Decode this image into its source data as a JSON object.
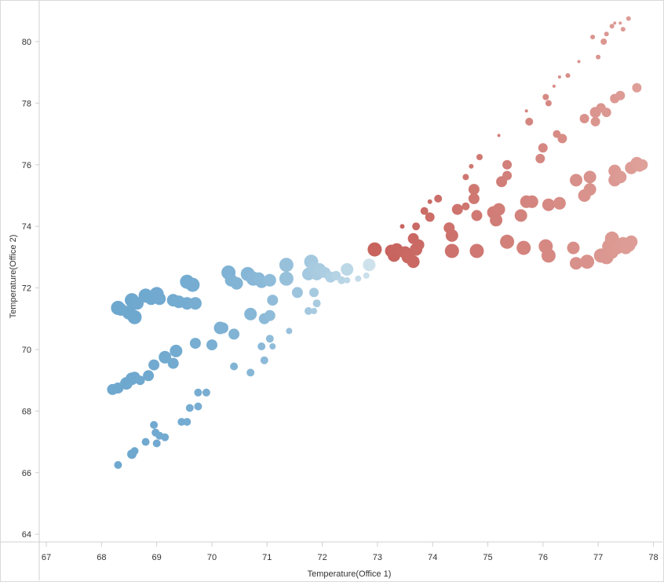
{
  "chart_data": {
    "type": "scatter",
    "xlabel": "Temperature(Office 1)",
    "ylabel": "Temperature(Office 2)",
    "xlim": [
      66.9,
      78.15
    ],
    "ylim": [
      63.8,
      81.3
    ],
    "xticks": [
      67,
      68,
      69,
      70,
      71,
      72,
      73,
      74,
      75,
      76,
      77,
      78
    ],
    "yticks": [
      64,
      66,
      68,
      70,
      72,
      74,
      76,
      78,
      80
    ],
    "grid": false,
    "legend": "none",
    "color_scale": {
      "low": "#6fa8cf",
      "mid": "#cfe3ec",
      "high": "#c8635e",
      "high_light": "#dea099",
      "low_value": 68.2,
      "mid_value": 72.9,
      "high_value": 73.2,
      "max_value": 77.8
    },
    "size_range_note": "marker size varies",
    "points": [
      [
        68.3,
        71.35,
        9
      ],
      [
        68.35,
        71.3,
        8
      ],
      [
        68.5,
        71.2,
        9
      ],
      [
        68.6,
        71.05,
        9
      ],
      [
        68.55,
        71.6,
        9
      ],
      [
        68.65,
        71.5,
        8
      ],
      [
        68.8,
        71.75,
        9
      ],
      [
        68.9,
        71.65,
        8
      ],
      [
        69.0,
        71.8,
        9
      ],
      [
        69.05,
        71.65,
        8
      ],
      [
        69.3,
        71.6,
        8
      ],
      [
        69.4,
        71.55,
        8
      ],
      [
        69.55,
        71.5,
        8
      ],
      [
        69.55,
        72.2,
        9
      ],
      [
        69.65,
        72.1,
        9
      ],
      [
        69.7,
        71.5,
        8
      ],
      [
        68.2,
        68.7,
        7
      ],
      [
        68.3,
        68.75,
        7
      ],
      [
        68.45,
        68.9,
        8
      ],
      [
        68.55,
        69.05,
        8
      ],
      [
        68.6,
        69.1,
        7
      ],
      [
        68.7,
        69.0,
        6
      ],
      [
        68.85,
        69.15,
        7
      ],
      [
        68.95,
        69.5,
        7
      ],
      [
        69.15,
        69.75,
        8
      ],
      [
        69.3,
        69.55,
        7
      ],
      [
        69.35,
        69.95,
        8
      ],
      [
        69.7,
        70.2,
        7
      ],
      [
        70.0,
        70.15,
        7
      ],
      [
        68.3,
        66.25,
        5
      ],
      [
        68.55,
        66.6,
        6
      ],
      [
        68.6,
        66.7,
        5
      ],
      [
        68.8,
        67.0,
        5
      ],
      [
        68.95,
        67.55,
        5
      ],
      [
        68.98,
        67.3,
        5
      ],
      [
        69.05,
        67.2,
        5
      ],
      [
        69.15,
        67.15,
        5
      ],
      [
        69.0,
        66.95,
        5
      ],
      [
        69.45,
        67.65,
        5
      ],
      [
        69.55,
        67.65,
        5
      ],
      [
        69.6,
        68.1,
        5
      ],
      [
        69.75,
        68.15,
        5
      ],
      [
        69.75,
        68.6,
        5
      ],
      [
        69.9,
        68.6,
        5
      ],
      [
        70.15,
        70.7,
        8
      ],
      [
        70.2,
        70.7,
        7
      ],
      [
        70.3,
        72.5,
        9
      ],
      [
        70.35,
        72.25,
        8
      ],
      [
        70.45,
        72.15,
        8
      ],
      [
        70.65,
        72.45,
        9
      ],
      [
        70.75,
        72.3,
        9
      ],
      [
        70.85,
        72.3,
        8
      ],
      [
        70.9,
        72.2,
        8
      ],
      [
        71.05,
        72.25,
        8
      ],
      [
        70.4,
        70.5,
        7
      ],
      [
        70.4,
        69.45,
        5
      ],
      [
        70.7,
        71.15,
        8
      ],
      [
        70.7,
        69.25,
        5
      ],
      [
        70.95,
        71.0,
        7
      ],
      [
        71.05,
        71.1,
        7
      ],
      [
        71.1,
        71.6,
        7
      ],
      [
        70.9,
        70.1,
        5
      ],
      [
        71.05,
        70.35,
        5
      ],
      [
        70.95,
        69.65,
        5
      ],
      [
        71.1,
        70.1,
        4
      ],
      [
        71.35,
        72.75,
        9
      ],
      [
        71.35,
        72.3,
        9
      ],
      [
        71.55,
        71.85,
        7
      ],
      [
        71.4,
        70.6,
        4
      ],
      [
        71.75,
        72.45,
        8
      ],
      [
        71.8,
        72.85,
        9
      ],
      [
        71.85,
        72.65,
        8
      ],
      [
        71.9,
        72.45,
        8
      ],
      [
        71.95,
        72.6,
        8
      ],
      [
        71.85,
        71.85,
        6
      ],
      [
        71.9,
        71.5,
        5
      ],
      [
        71.75,
        71.25,
        5
      ],
      [
        71.85,
        71.25,
        4
      ],
      [
        72.05,
        72.5,
        7
      ],
      [
        72.15,
        72.35,
        7
      ],
      [
        72.25,
        72.4,
        6
      ],
      [
        72.35,
        72.25,
        5
      ],
      [
        72.45,
        72.25,
        4
      ],
      [
        72.45,
        72.6,
        8
      ],
      [
        72.65,
        72.3,
        4
      ],
      [
        72.85,
        72.75,
        8
      ],
      [
        72.95,
        73.25,
        9
      ],
      [
        72.8,
        72.4,
        4
      ],
      [
        73.25,
        73.2,
        8
      ],
      [
        73.3,
        73.05,
        8
      ],
      [
        73.35,
        73.25,
        8
      ],
      [
        73.5,
        73.15,
        8
      ],
      [
        73.55,
        73.0,
        8
      ],
      [
        73.65,
        72.85,
        8
      ],
      [
        73.7,
        73.25,
        8
      ],
      [
        73.65,
        73.6,
        7
      ],
      [
        73.75,
        73.4,
        7
      ],
      [
        73.45,
        74.0,
        3
      ],
      [
        73.7,
        74.0,
        5
      ],
      [
        73.85,
        74.5,
        5
      ],
      [
        73.95,
        74.3,
        6
      ],
      [
        74.1,
        74.9,
        5
      ],
      [
        73.95,
        74.8,
        3
      ],
      [
        74.3,
        73.95,
        7
      ],
      [
        74.35,
        73.7,
        8
      ],
      [
        74.35,
        73.2,
        9
      ],
      [
        74.45,
        74.55,
        7
      ],
      [
        74.6,
        74.65,
        5
      ],
      [
        74.6,
        75.6,
        4
      ],
      [
        74.7,
        75.95,
        3
      ],
      [
        74.75,
        75.2,
        7
      ],
      [
        74.75,
        74.9,
        7
      ],
      [
        74.8,
        74.35,
        7
      ],
      [
        74.85,
        76.25,
        4
      ],
      [
        74.8,
        73.2,
        9
      ],
      [
        75.1,
        74.45,
        8
      ],
      [
        75.15,
        74.2,
        8
      ],
      [
        75.2,
        74.55,
        8
      ],
      [
        75.25,
        75.45,
        7
      ],
      [
        75.35,
        75.65,
        6
      ],
      [
        75.35,
        76.0,
        6
      ],
      [
        75.2,
        76.95,
        2
      ],
      [
        75.35,
        73.5,
        9
      ],
      [
        75.65,
        73.3,
        9
      ],
      [
        75.6,
        74.35,
        8
      ],
      [
        75.7,
        74.8,
        8
      ],
      [
        75.8,
        74.8,
        8
      ],
      [
        75.75,
        77.4,
        5
      ],
      [
        75.7,
        77.75,
        2
      ],
      [
        75.95,
        76.2,
        6
      ],
      [
        76.0,
        76.55,
        6
      ],
      [
        76.05,
        78.2,
        4
      ],
      [
        76.1,
        78.0,
        4
      ],
      [
        76.05,
        73.35,
        9
      ],
      [
        76.1,
        73.05,
        9
      ],
      [
        76.1,
        74.7,
        8
      ],
      [
        76.3,
        74.75,
        8
      ],
      [
        76.25,
        77.0,
        5
      ],
      [
        76.2,
        78.55,
        2
      ],
      [
        76.3,
        78.85,
        2
      ],
      [
        76.35,
        76.85,
        6
      ],
      [
        76.45,
        78.9,
        3
      ],
      [
        76.55,
        73.3,
        8
      ],
      [
        76.6,
        72.8,
        8
      ],
      [
        76.6,
        75.5,
        8
      ],
      [
        76.65,
        79.35,
        2
      ],
      [
        76.75,
        77.5,
        6
      ],
      [
        76.75,
        75.0,
        8
      ],
      [
        76.8,
        72.85,
        9
      ],
      [
        76.85,
        75.6,
        8
      ],
      [
        76.85,
        75.2,
        8
      ],
      [
        76.9,
        80.15,
        3
      ],
      [
        76.95,
        77.7,
        7
      ],
      [
        76.95,
        77.4,
        6
      ],
      [
        77.0,
        79.5,
        3
      ],
      [
        77.05,
        77.85,
        6
      ],
      [
        77.15,
        77.7,
        6
      ],
      [
        77.1,
        80.0,
        4
      ],
      [
        77.15,
        80.25,
        3
      ],
      [
        77.25,
        80.5,
        3
      ],
      [
        77.3,
        80.6,
        2
      ],
      [
        77.4,
        80.6,
        2
      ],
      [
        77.45,
        80.4,
        3
      ],
      [
        77.55,
        80.75,
        3
      ],
      [
        77.05,
        73.05,
        9
      ],
      [
        77.15,
        73.0,
        9
      ],
      [
        77.2,
        73.35,
        9
      ],
      [
        77.25,
        73.15,
        8
      ],
      [
        77.25,
        73.6,
        9
      ],
      [
        77.3,
        75.5,
        8
      ],
      [
        77.3,
        75.8,
        8
      ],
      [
        77.4,
        75.6,
        8
      ],
      [
        77.3,
        78.15,
        6
      ],
      [
        77.4,
        78.25,
        6
      ],
      [
        77.35,
        73.3,
        8
      ],
      [
        77.45,
        73.45,
        8
      ],
      [
        77.5,
        73.3,
        8
      ],
      [
        77.55,
        73.4,
        9
      ],
      [
        77.6,
        73.5,
        8
      ],
      [
        77.6,
        75.9,
        8
      ],
      [
        77.7,
        76.05,
        8
      ],
      [
        77.75,
        75.95,
        7
      ],
      [
        77.8,
        76.0,
        7
      ],
      [
        77.7,
        78.5,
        6
      ]
    ]
  }
}
